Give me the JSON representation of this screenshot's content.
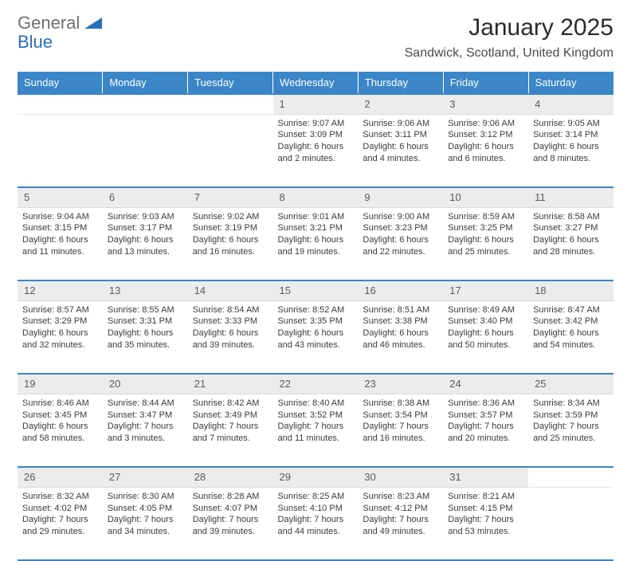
{
  "brand": {
    "word1": "General",
    "word2": "Blue"
  },
  "title": "January 2025",
  "location": "Sandwick, Scotland, United Kingdom",
  "colors": {
    "header_bg": "#3b86c8",
    "header_text": "#ffffff",
    "daynum_bg": "#ececec",
    "daynum_text": "#5a5a5a",
    "rule": "#3b86c8",
    "body_text": "#3b3b3b",
    "page_bg": "#ffffff"
  },
  "day_headers": [
    "Sunday",
    "Monday",
    "Tuesday",
    "Wednesday",
    "Thursday",
    "Friday",
    "Saturday"
  ],
  "weeks": [
    {
      "nums": [
        "",
        "",
        "",
        "1",
        "2",
        "3",
        "4"
      ],
      "cells": [
        null,
        null,
        null,
        {
          "sunrise": "Sunrise: 9:07 AM",
          "sunset": "Sunset: 3:09 PM",
          "daylight1": "Daylight: 6 hours",
          "daylight2": "and 2 minutes."
        },
        {
          "sunrise": "Sunrise: 9:06 AM",
          "sunset": "Sunset: 3:11 PM",
          "daylight1": "Daylight: 6 hours",
          "daylight2": "and 4 minutes."
        },
        {
          "sunrise": "Sunrise: 9:06 AM",
          "sunset": "Sunset: 3:12 PM",
          "daylight1": "Daylight: 6 hours",
          "daylight2": "and 6 minutes."
        },
        {
          "sunrise": "Sunrise: 9:05 AM",
          "sunset": "Sunset: 3:14 PM",
          "daylight1": "Daylight: 6 hours",
          "daylight2": "and 8 minutes."
        }
      ]
    },
    {
      "nums": [
        "5",
        "6",
        "7",
        "8",
        "9",
        "10",
        "11"
      ],
      "cells": [
        {
          "sunrise": "Sunrise: 9:04 AM",
          "sunset": "Sunset: 3:15 PM",
          "daylight1": "Daylight: 6 hours",
          "daylight2": "and 11 minutes."
        },
        {
          "sunrise": "Sunrise: 9:03 AM",
          "sunset": "Sunset: 3:17 PM",
          "daylight1": "Daylight: 6 hours",
          "daylight2": "and 13 minutes."
        },
        {
          "sunrise": "Sunrise: 9:02 AM",
          "sunset": "Sunset: 3:19 PM",
          "daylight1": "Daylight: 6 hours",
          "daylight2": "and 16 minutes."
        },
        {
          "sunrise": "Sunrise: 9:01 AM",
          "sunset": "Sunset: 3:21 PM",
          "daylight1": "Daylight: 6 hours",
          "daylight2": "and 19 minutes."
        },
        {
          "sunrise": "Sunrise: 9:00 AM",
          "sunset": "Sunset: 3:23 PM",
          "daylight1": "Daylight: 6 hours",
          "daylight2": "and 22 minutes."
        },
        {
          "sunrise": "Sunrise: 8:59 AM",
          "sunset": "Sunset: 3:25 PM",
          "daylight1": "Daylight: 6 hours",
          "daylight2": "and 25 minutes."
        },
        {
          "sunrise": "Sunrise: 8:58 AM",
          "sunset": "Sunset: 3:27 PM",
          "daylight1": "Daylight: 6 hours",
          "daylight2": "and 28 minutes."
        }
      ]
    },
    {
      "nums": [
        "12",
        "13",
        "14",
        "15",
        "16",
        "17",
        "18"
      ],
      "cells": [
        {
          "sunrise": "Sunrise: 8:57 AM",
          "sunset": "Sunset: 3:29 PM",
          "daylight1": "Daylight: 6 hours",
          "daylight2": "and 32 minutes."
        },
        {
          "sunrise": "Sunrise: 8:55 AM",
          "sunset": "Sunset: 3:31 PM",
          "daylight1": "Daylight: 6 hours",
          "daylight2": "and 35 minutes."
        },
        {
          "sunrise": "Sunrise: 8:54 AM",
          "sunset": "Sunset: 3:33 PM",
          "daylight1": "Daylight: 6 hours",
          "daylight2": "and 39 minutes."
        },
        {
          "sunrise": "Sunrise: 8:52 AM",
          "sunset": "Sunset: 3:35 PM",
          "daylight1": "Daylight: 6 hours",
          "daylight2": "and 43 minutes."
        },
        {
          "sunrise": "Sunrise: 8:51 AM",
          "sunset": "Sunset: 3:38 PM",
          "daylight1": "Daylight: 6 hours",
          "daylight2": "and 46 minutes."
        },
        {
          "sunrise": "Sunrise: 8:49 AM",
          "sunset": "Sunset: 3:40 PM",
          "daylight1": "Daylight: 6 hours",
          "daylight2": "and 50 minutes."
        },
        {
          "sunrise": "Sunrise: 8:47 AM",
          "sunset": "Sunset: 3:42 PM",
          "daylight1": "Daylight: 6 hours",
          "daylight2": "and 54 minutes."
        }
      ]
    },
    {
      "nums": [
        "19",
        "20",
        "21",
        "22",
        "23",
        "24",
        "25"
      ],
      "cells": [
        {
          "sunrise": "Sunrise: 8:46 AM",
          "sunset": "Sunset: 3:45 PM",
          "daylight1": "Daylight: 6 hours",
          "daylight2": "and 58 minutes."
        },
        {
          "sunrise": "Sunrise: 8:44 AM",
          "sunset": "Sunset: 3:47 PM",
          "daylight1": "Daylight: 7 hours",
          "daylight2": "and 3 minutes."
        },
        {
          "sunrise": "Sunrise: 8:42 AM",
          "sunset": "Sunset: 3:49 PM",
          "daylight1": "Daylight: 7 hours",
          "daylight2": "and 7 minutes."
        },
        {
          "sunrise": "Sunrise: 8:40 AM",
          "sunset": "Sunset: 3:52 PM",
          "daylight1": "Daylight: 7 hours",
          "daylight2": "and 11 minutes."
        },
        {
          "sunrise": "Sunrise: 8:38 AM",
          "sunset": "Sunset: 3:54 PM",
          "daylight1": "Daylight: 7 hours",
          "daylight2": "and 16 minutes."
        },
        {
          "sunrise": "Sunrise: 8:36 AM",
          "sunset": "Sunset: 3:57 PM",
          "daylight1": "Daylight: 7 hours",
          "daylight2": "and 20 minutes."
        },
        {
          "sunrise": "Sunrise: 8:34 AM",
          "sunset": "Sunset: 3:59 PM",
          "daylight1": "Daylight: 7 hours",
          "daylight2": "and 25 minutes."
        }
      ]
    },
    {
      "nums": [
        "26",
        "27",
        "28",
        "29",
        "30",
        "31",
        ""
      ],
      "cells": [
        {
          "sunrise": "Sunrise: 8:32 AM",
          "sunset": "Sunset: 4:02 PM",
          "daylight1": "Daylight: 7 hours",
          "daylight2": "and 29 minutes."
        },
        {
          "sunrise": "Sunrise: 8:30 AM",
          "sunset": "Sunset: 4:05 PM",
          "daylight1": "Daylight: 7 hours",
          "daylight2": "and 34 minutes."
        },
        {
          "sunrise": "Sunrise: 8:28 AM",
          "sunset": "Sunset: 4:07 PM",
          "daylight1": "Daylight: 7 hours",
          "daylight2": "and 39 minutes."
        },
        {
          "sunrise": "Sunrise: 8:25 AM",
          "sunset": "Sunset: 4:10 PM",
          "daylight1": "Daylight: 7 hours",
          "daylight2": "and 44 minutes."
        },
        {
          "sunrise": "Sunrise: 8:23 AM",
          "sunset": "Sunset: 4:12 PM",
          "daylight1": "Daylight: 7 hours",
          "daylight2": "and 49 minutes."
        },
        {
          "sunrise": "Sunrise: 8:21 AM",
          "sunset": "Sunset: 4:15 PM",
          "daylight1": "Daylight: 7 hours",
          "daylight2": "and 53 minutes."
        },
        null
      ]
    }
  ]
}
